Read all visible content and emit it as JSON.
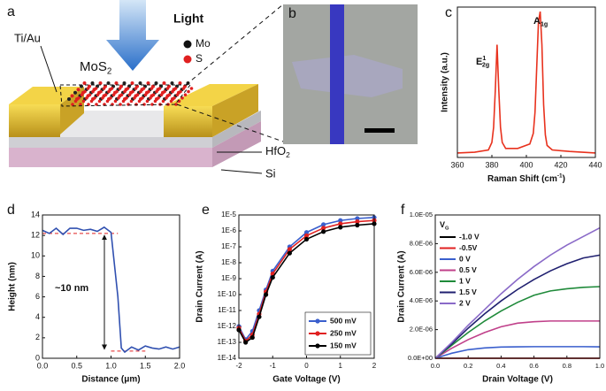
{
  "panels": {
    "a": {
      "label": "a",
      "light": "Light",
      "electrode": "Ti/Au",
      "material": {
        "main": "MoS",
        "sub": "2"
      },
      "atoms": [
        "Mo",
        "S"
      ],
      "dielectric": {
        "main": "HfO",
        "sub": "2"
      },
      "substrate": "Si"
    },
    "b": {
      "label": "b"
    }
  },
  "chart_data": [
    {
      "type": "line",
      "panel_label": "c",
      "xlabel": {
        "main": "Raman Shift (cm",
        "sup": "-1",
        "tail": ")"
      },
      "ylabel": "Intensity (a.u.)",
      "annotations": [
        {
          "main": "E",
          "sup": "1",
          "sub": "2g"
        },
        {
          "main": "A",
          "sub": "1g"
        }
      ],
      "x": [
        360,
        370,
        378,
        380,
        381,
        382,
        383,
        384,
        385,
        386,
        388,
        395,
        402,
        404,
        405,
        406,
        407,
        408,
        409,
        410,
        411,
        412,
        415,
        425,
        440
      ],
      "values": [
        0.03,
        0.035,
        0.05,
        0.1,
        0.2,
        0.45,
        0.75,
        0.45,
        0.2,
        0.1,
        0.06,
        0.06,
        0.09,
        0.16,
        0.3,
        0.6,
        0.9,
        0.97,
        0.75,
        0.35,
        0.15,
        0.08,
        0.05,
        0.04,
        0.03
      ],
      "color": "#e8321e",
      "xlim": [
        360,
        440
      ],
      "xticks": [
        360,
        380,
        400,
        420,
        440
      ],
      "ylim": [
        0,
        1
      ]
    },
    {
      "type": "line",
      "panel_label": "d",
      "xlabel": "Distance (μm)",
      "ylabel": "Height (nm)",
      "annotations": [
        "~10 nm"
      ],
      "x": [
        0,
        0.1,
        0.2,
        0.3,
        0.4,
        0.5,
        0.6,
        0.7,
        0.8,
        0.9,
        1.0,
        1.1,
        1.15,
        1.2,
        1.3,
        1.4,
        1.5,
        1.6,
        1.7,
        1.8,
        1.9,
        2.0
      ],
      "values": [
        12.5,
        12.2,
        12.7,
        12.1,
        12.7,
        12.7,
        12.5,
        12.6,
        12.4,
        12.8,
        12.3,
        6,
        1.0,
        0.6,
        1.1,
        0.8,
        1.2,
        1.0,
        0.9,
        1.1,
        0.9,
        1.1
      ],
      "color": "#3050b0",
      "reference_lines": [
        {
          "value": 12.2,
          "x": [
            0,
            1.1
          ]
        },
        {
          "value": 0.7,
          "x": [
            1.0,
            1.5
          ]
        }
      ],
      "reference_color": "#e02020",
      "xlim": [
        0,
        2
      ],
      "xticks": [
        {
          "value": 0,
          "label": "0.0"
        },
        0.5,
        {
          "value": 1,
          "label": "1.0"
        },
        1.5,
        {
          "value": 2,
          "label": "2.0"
        }
      ],
      "ylim": [
        0,
        14
      ],
      "yticks": [
        0,
        2,
        4,
        6,
        8,
        10,
        12,
        14
      ]
    },
    {
      "type": "line",
      "panel_label": "e",
      "xlabel": "Gate Voltage (V)",
      "ylabel": "Drain Current (A)",
      "log_y": true,
      "markers": true,
      "legend": "lower right",
      "x": [
        -2,
        -1.8,
        -1.6,
        -1.4,
        -1.2,
        -1,
        -0.5,
        0,
        0.5,
        1,
        1.5,
        2
      ],
      "series": [
        {
          "name": "500 mV",
          "color": "#3a5fcd",
          "values": [
            1e-12,
            1.5e-13,
            5e-13,
            1e-11,
            2e-10,
            3e-09,
            1e-07,
            8e-07,
            2.5e-06,
            4.5e-06,
            6e-06,
            7e-06
          ]
        },
        {
          "name": "250 mV",
          "color": "#e02020",
          "values": [
            8e-13,
            1.2e-13,
            3e-13,
            6e-12,
            1.5e-10,
            2e-09,
            7e-08,
            5e-07,
            1.5e-06,
            2.8e-06,
            3.8e-06,
            4.5e-06
          ]
        },
        {
          "name": "150 mV",
          "color": "#000000",
          "values": [
            6e-13,
            1e-13,
            2e-13,
            4e-12,
            1e-10,
            1.2e-09,
            4e-08,
            3e-07,
            9e-07,
            1.7e-06,
            2.3e-06,
            2.8e-06
          ]
        }
      ],
      "xlim": [
        -2,
        2
      ],
      "xticks": [
        -2,
        -1,
        0,
        1,
        2
      ],
      "ylim": [
        1e-14,
        1e-05
      ],
      "yticks": [
        {
          "value": 1e-14,
          "label": "1E-14"
        },
        {
          "value": 1e-13,
          "label": "1E-13"
        },
        {
          "value": 1e-12,
          "label": "1E-12"
        },
        {
          "value": 1e-11,
          "label": "1E-11"
        },
        {
          "value": 1e-10,
          "label": "1E-10"
        },
        {
          "value": 1e-09,
          "label": "1E-9"
        },
        {
          "value": 1e-08,
          "label": "1E-8"
        },
        {
          "value": 1e-07,
          "label": "1E-7"
        },
        {
          "value": 1e-06,
          "label": "1E-6"
        },
        {
          "value": 1e-05,
          "label": "1E-5"
        }
      ]
    },
    {
      "type": "line",
      "panel_label": "f",
      "xlabel": "Drain Voltage (V)",
      "ylabel": "Drain Current (A)",
      "legend": "upper left",
      "legend_title": {
        "main": "V",
        "sub": "G"
      },
      "x": [
        0,
        0.1,
        0.2,
        0.3,
        0.4,
        0.5,
        0.6,
        0.7,
        0.8,
        0.9,
        1.0
      ],
      "series": [
        {
          "name": "-1.0 V",
          "color": "#000000",
          "values": [
            0,
            0,
            0,
            0,
            0,
            0,
            0,
            0,
            0,
            0,
            0
          ]
        },
        {
          "name": "-0.5V",
          "color": "#e02020",
          "values": [
            0,
            0,
            0,
            0,
            0,
            0,
            0,
            0,
            0,
            0,
            0
          ]
        },
        {
          "name": "0 V",
          "color": "#3a5fcd",
          "values": [
            0,
            3.5e-07,
            6e-07,
            7.2e-07,
            7.8e-07,
            8e-07,
            8.1e-07,
            8.1e-07,
            8.1e-07,
            8.1e-07,
            8e-07
          ]
        },
        {
          "name": "0.5 V",
          "color": "#c0408a",
          "values": [
            0,
            7e-07,
            1.3e-06,
            1.8e-06,
            2.2e-06,
            2.45e-06,
            2.55e-06,
            2.6e-06,
            2.6e-06,
            2.6e-06,
            2.6e-06
          ]
        },
        {
          "name": "1 V",
          "color": "#1f8a3a",
          "values": [
            0,
            9e-07,
            1.8e-06,
            2.6e-06,
            3.3e-06,
            3.9e-06,
            4.4e-06,
            4.7e-06,
            4.85e-06,
            4.95e-06,
            5e-06
          ]
        },
        {
          "name": "1.5 V",
          "color": "#202070",
          "values": [
            0,
            1e-06,
            2.1e-06,
            3.1e-06,
            4e-06,
            4.8e-06,
            5.5e-06,
            6.1e-06,
            6.6e-06,
            7e-06,
            7.2e-06
          ]
        },
        {
          "name": "2 V",
          "color": "#8a6ac8",
          "values": [
            0,
            1.1e-06,
            2.3e-06,
            3.4e-06,
            4.5e-06,
            5.5e-06,
            6.4e-06,
            7.2e-06,
            7.9e-06,
            8.5e-06,
            9.1e-06
          ]
        }
      ],
      "xlim": [
        0,
        1
      ],
      "xticks": [
        {
          "value": 0,
          "label": "0.0"
        },
        0.2,
        0.4,
        0.6,
        0.8,
        {
          "value": 1,
          "label": "1.0"
        }
      ],
      "ylim": [
        0,
        1e-05
      ],
      "yticks": [
        {
          "value": 0,
          "label": "0.0E+00"
        },
        {
          "value": 2e-06,
          "label": "2.0E-06"
        },
        {
          "value": 4e-06,
          "label": "4.0E-06"
        },
        {
          "value": 6e-06,
          "label": "6.0E-06"
        },
        {
          "value": 8e-06,
          "label": "8.0E-06"
        },
        {
          "value": 1e-05,
          "label": "1.0E-05"
        }
      ]
    }
  ]
}
